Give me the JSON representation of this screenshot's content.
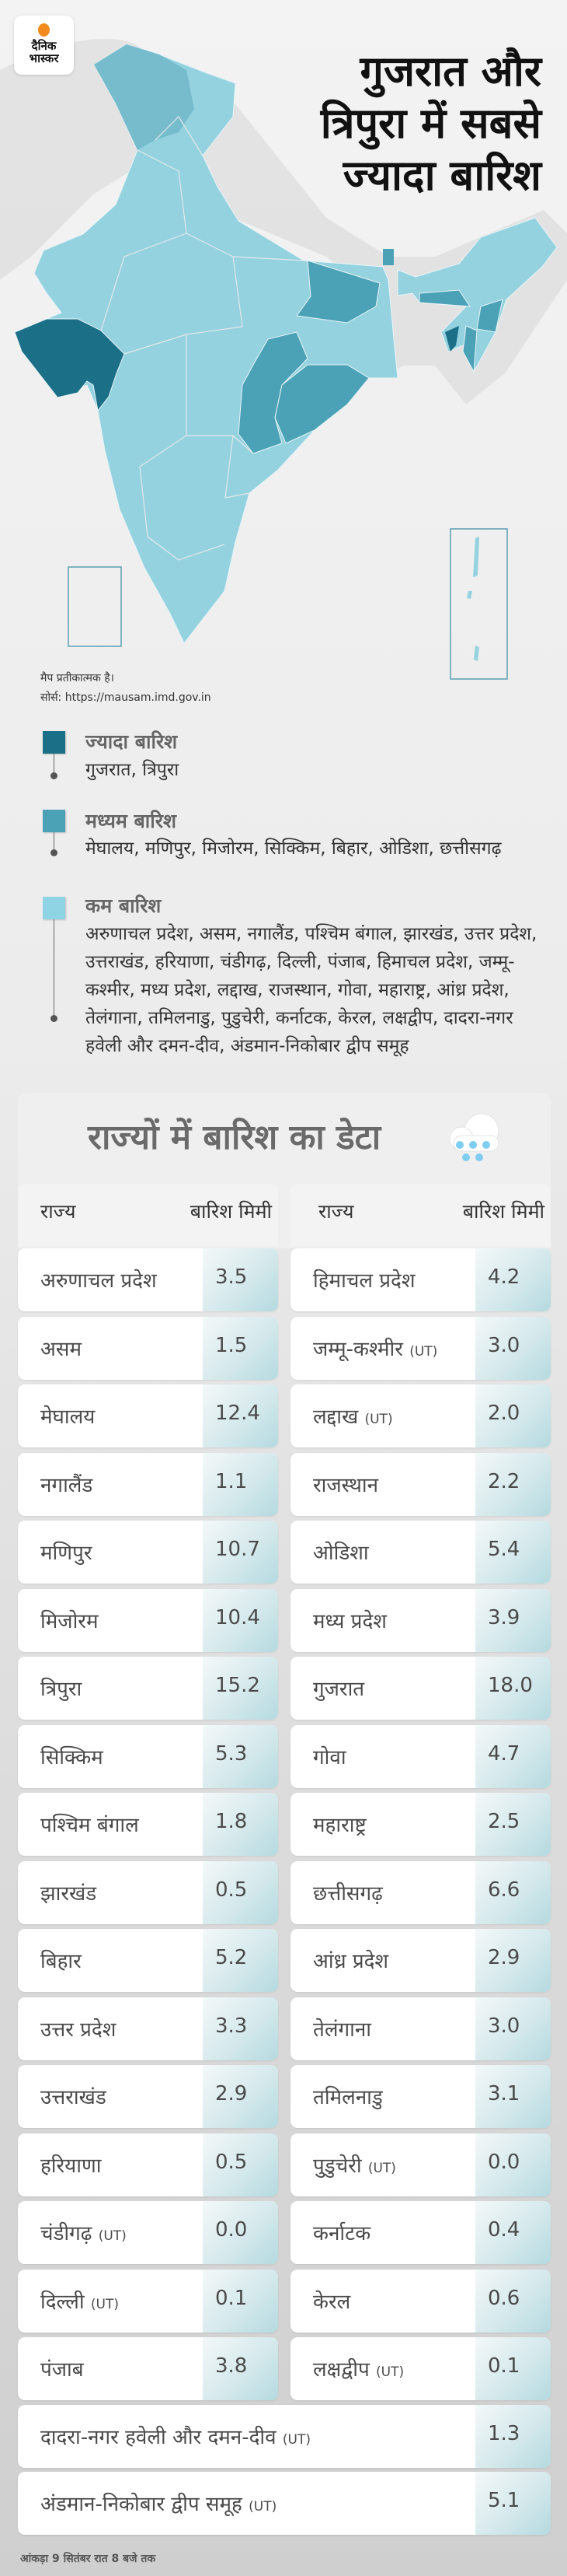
{
  "logo": {
    "line1": "दैनिक",
    "line2": "भास्कर"
  },
  "title": {
    "line1": "गुजरात और",
    "line2": "त्रिपुरा में सबसे",
    "line3": "ज्यादा बारिश"
  },
  "map_notes": {
    "disclaimer": "मैप प्रतीकात्मक है।",
    "source": "सोर्स: https://mausam.imd.gov.in"
  },
  "colors": {
    "high": "#1b6f86",
    "medium": "#4ba2b7",
    "low": "#8fd4e4"
  },
  "legend": [
    {
      "heading": "ज्यादा बारिश",
      "states": "गुजरात, त्रिपुरा"
    },
    {
      "heading": "मध्यम बारिश",
      "states": "मेघालय, मणिपुर, मिजोरम, सिक्किम, बिहार, ओडिशा, छत्तीसगढ़"
    },
    {
      "heading": "कम बारिश",
      "states": "अरुणाचल प्रदेश, असम, नगालैंड, पश्चिम बंगाल, झारखंड, उत्तर प्रदेश, उत्तराखंड, हरियाणा, चंडीगढ़, दिल्ली, पंजाब, हिमाचल प्रदेश, जम्मू-कश्मीर, मध्य प्रदेश, लद्दाख, राजस्थान, गोवा, महाराष्ट्र, आंध्र प्रदेश, तेलंगाना, तमिलनाडु, पुडुचेरी, कर्नाटक, केरल, लक्षद्वीप, दादरा-नगर हवेली और दमन-दीव, अंडमान-निकोबार द्वीप समूह"
    }
  ],
  "table": {
    "title": "राज्यों में बारिश का डेटा",
    "col_state": "राज्य",
    "col_rain": "बारिश मिमी",
    "left": [
      {
        "name": "अरुणाचल प्रदेश",
        "value": "3.5"
      },
      {
        "name": "असम",
        "value": "1.5"
      },
      {
        "name": "मेघालय",
        "value": "12.4"
      },
      {
        "name": "नगालैंड",
        "value": "1.1"
      },
      {
        "name": "मणिपुर",
        "value": "10.7"
      },
      {
        "name": "मिजोरम",
        "value": "10.4"
      },
      {
        "name": "त्रिपुरा",
        "value": "15.2"
      },
      {
        "name": "सिक्किम",
        "value": "5.3"
      },
      {
        "name": "पश्चिम बंगाल",
        "value": "1.8"
      },
      {
        "name": "झारखंड",
        "value": "0.5"
      },
      {
        "name": "बिहार",
        "value": "5.2"
      },
      {
        "name": "उत्तर प्रदेश",
        "value": "3.3"
      },
      {
        "name": "उत्तराखंड",
        "value": "2.9"
      },
      {
        "name": "हरियाणा",
        "value": "0.5"
      },
      {
        "name": "चंडीगढ़",
        "ut": "(UT)",
        "value": "0.0"
      },
      {
        "name": "दिल्ली",
        "ut": "(UT)",
        "value": "0.1"
      },
      {
        "name": "पंजाब",
        "value": "3.8"
      }
    ],
    "right": [
      {
        "name": "हिमाचल प्रदेश",
        "value": "4.2"
      },
      {
        "name": "जम्मू-कश्मीर",
        "ut": "(UT)",
        "value": "3.0"
      },
      {
        "name": "लद्दाख",
        "ut": "(UT)",
        "value": "2.0"
      },
      {
        "name": "राजस्थान",
        "value": "2.2"
      },
      {
        "name": "ओडिशा",
        "value": "5.4"
      },
      {
        "name": "मध्य प्रदेश",
        "value": "3.9"
      },
      {
        "name": "गुजरात",
        "value": "18.0"
      },
      {
        "name": "गोवा",
        "value": "4.7"
      },
      {
        "name": "महाराष्ट्र",
        "value": "2.5"
      },
      {
        "name": "छत्तीसगढ़",
        "value": "6.6"
      },
      {
        "name": "आंध्र प्रदेश",
        "value": "2.9"
      },
      {
        "name": "तेलंगाना",
        "value": "3.0"
      },
      {
        "name": "तमिलनाडु",
        "value": "3.1"
      },
      {
        "name": "पुडुचेरी",
        "ut": "(UT)",
        "value": "0.0"
      },
      {
        "name": "कर्नाटक",
        "value": "0.4"
      },
      {
        "name": "केरल",
        "value": "0.6"
      },
      {
        "name": "लक्षद्वीप",
        "ut": "(UT)",
        "value": "0.1"
      }
    ],
    "wide": [
      {
        "name": "दादरा-नगर हवेली और दमन-दीव",
        "ut": "(UT)",
        "value": "1.3"
      },
      {
        "name": "अंडमान-निकोबार द्वीप समूह",
        "ut": "(UT)",
        "value": "5.1"
      }
    ]
  },
  "footer": "आंकड़ा 9 सितंबर रात 8 बजे तक"
}
